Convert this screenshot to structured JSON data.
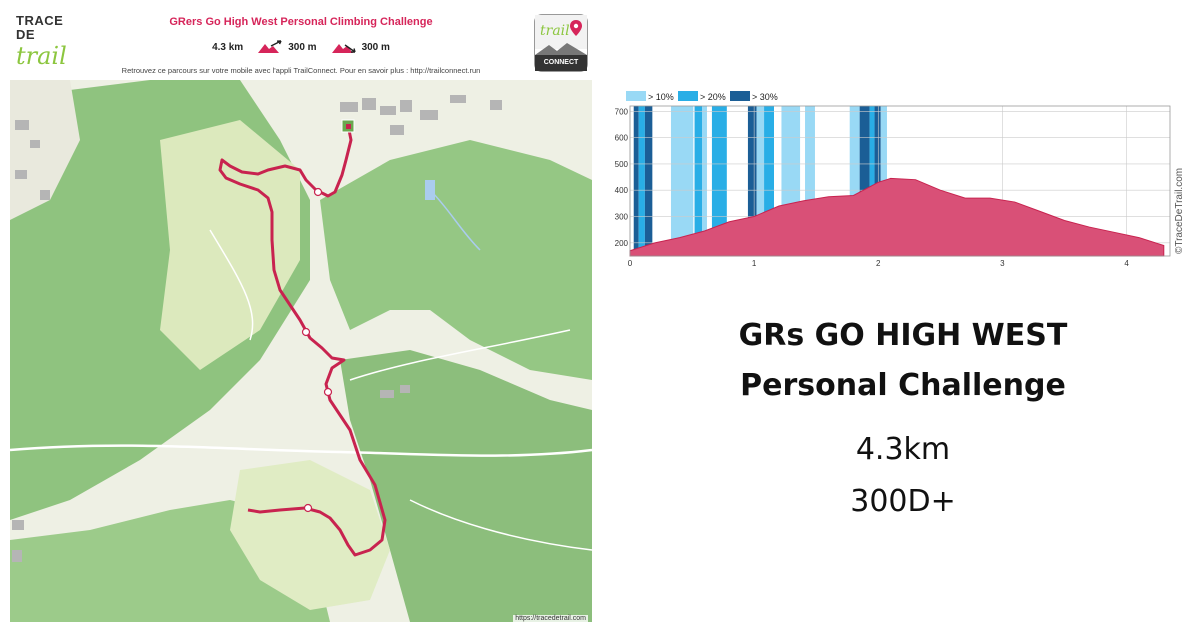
{
  "map": {
    "brand_trace": "TRACE",
    "brand_de": "DE",
    "brand_trail": "trail",
    "title": "GRers Go High West Personal Climbing Challenge",
    "distance": "4.3 km",
    "ascent": "300 m",
    "descent": "300 m",
    "info_line": "Retrouvez ce parcours sur votre mobile avec l'appli TrailConnect. Pour en savoir plus : http://trailconnect.run",
    "app_logo_word": "trail",
    "app_logo_label": "CONNECT",
    "credit": "https://tracedetrail.com",
    "colors": {
      "route": "#c8234f",
      "forest": "#8cc07e",
      "meadow": "#d9e8b8",
      "background": "#eef0e4"
    },
    "icons": [
      "ascent-icon",
      "descent-icon",
      "start-flag-icon"
    ]
  },
  "chart_data": {
    "type": "area",
    "title": "",
    "xlabel": "",
    "ylabel": "",
    "xlim": [
      0,
      4.35
    ],
    "ylim": [
      150,
      720
    ],
    "x_ticks": [
      "0",
      "1",
      "2",
      "3",
      "4"
    ],
    "y_ticks": [
      "200",
      "300",
      "400",
      "500",
      "600",
      "700"
    ],
    "grid": true,
    "legend_position": "top-left",
    "legend": [
      {
        "label": "> 10%",
        "color": "#99d9f5"
      },
      {
        "label": "> 20%",
        "color": "#29aee6"
      },
      {
        "label": "> 30%",
        "color": "#1b5e96"
      }
    ],
    "watermark": "©TraceDeTrail.com",
    "series": [
      {
        "color": "#d95077",
        "x": [
          0,
          0.2,
          0.4,
          0.6,
          0.8,
          1.0,
          1.2,
          1.4,
          1.6,
          1.8,
          2.0,
          2.1,
          2.3,
          2.5,
          2.7,
          2.9,
          3.1,
          3.3,
          3.5,
          3.7,
          3.9,
          4.1,
          4.3
        ],
        "y": [
          170,
          200,
          220,
          245,
          280,
          300,
          340,
          360,
          375,
          380,
          430,
          445,
          440,
          400,
          370,
          370,
          355,
          320,
          285,
          260,
          240,
          220,
          190
        ]
      }
    ],
    "slope_bands": [
      {
        "start": 0.03,
        "end": 0.07,
        "level": "> 30%"
      },
      {
        "start": 0.07,
        "end": 0.12,
        "level": "> 20%"
      },
      {
        "start": 0.12,
        "end": 0.18,
        "level": "> 30%"
      },
      {
        "start": 0.33,
        "end": 0.51,
        "level": "> 10%"
      },
      {
        "start": 0.52,
        "end": 0.58,
        "level": "> 20%"
      },
      {
        "start": 0.58,
        "end": 0.62,
        "level": "> 10%"
      },
      {
        "start": 0.66,
        "end": 0.78,
        "level": "> 20%"
      },
      {
        "start": 0.95,
        "end": 1.02,
        "level": "> 30%"
      },
      {
        "start": 1.02,
        "end": 1.08,
        "level": "> 10%"
      },
      {
        "start": 1.08,
        "end": 1.16,
        "level": "> 20%"
      },
      {
        "start": 1.22,
        "end": 1.37,
        "level": "> 10%"
      },
      {
        "start": 1.41,
        "end": 1.49,
        "level": "> 10%"
      },
      {
        "start": 1.77,
        "end": 1.85,
        "level": "> 10%"
      },
      {
        "start": 1.85,
        "end": 1.93,
        "level": "> 30%"
      },
      {
        "start": 1.93,
        "end": 1.97,
        "level": "> 20%"
      },
      {
        "start": 1.97,
        "end": 2.02,
        "level": "> 30%"
      },
      {
        "start": 2.02,
        "end": 2.07,
        "level": "> 10%"
      }
    ]
  },
  "summary": {
    "title_line1": "GRs GO HIGH WEST",
    "title_line2": "Personal Challenge",
    "distance": "4.3km",
    "elevation": "300D+"
  }
}
